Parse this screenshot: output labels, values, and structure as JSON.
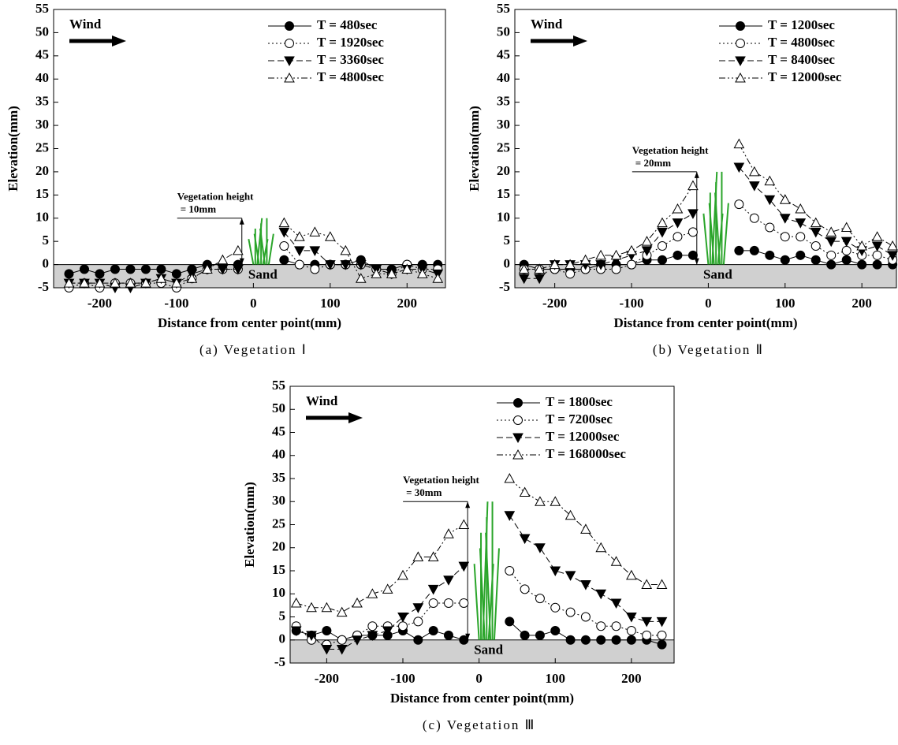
{
  "chart_data": [
    {
      "type": "line",
      "caption": "(a) Vegetation Ⅰ",
      "xlabel": "Distance from center point(mm)",
      "ylabel": "Elevation(mm)",
      "wind_label": "Wind",
      "sand_label": "Sand",
      "vegetation_label": "Vegetation height",
      "vegetation_height": {
        "value": 10,
        "label": "= 10mm"
      },
      "x": [
        -240,
        -220,
        -200,
        -180,
        -160,
        -140,
        -120,
        -100,
        -80,
        -60,
        -40,
        -20,
        0,
        20,
        40,
        60,
        80,
        100,
        120,
        140,
        160,
        180,
        200,
        220,
        240
      ],
      "xlim": [
        -260,
        250
      ],
      "xticks": [
        -200,
        -100,
        0,
        100,
        200
      ],
      "ylim": [
        -5,
        55
      ],
      "yticks": [
        -5,
        0,
        5,
        10,
        15,
        20,
        25,
        30,
        35,
        40,
        45,
        50,
        55
      ],
      "legend": "upper right",
      "series": [
        {
          "name": "T = 480sec",
          "color": "#000",
          "marker": "circle-filled",
          "dash": "solid",
          "values": [
            -2,
            -1,
            -2,
            -1,
            -1,
            -1,
            -1,
            -2,
            -1,
            0,
            0,
            0,
            null,
            null,
            1,
            0,
            0,
            0,
            0,
            1,
            -1,
            -1,
            0,
            0,
            0
          ]
        },
        {
          "name": "T = 1920sec",
          "color": "#000",
          "marker": "circle-open",
          "dash": "dotted",
          "values": [
            -5,
            -4,
            -5,
            -4,
            -4,
            -4,
            -4,
            -5,
            -3,
            -1,
            -1,
            -1,
            null,
            null,
            4,
            0,
            -1,
            0,
            0,
            0,
            -1,
            -2,
            0,
            -1,
            -1
          ]
        },
        {
          "name": "T = 3360sec",
          "color": "#000",
          "marker": "triangle-down-filled",
          "dash": "dashed",
          "values": [
            -4,
            -4,
            -4,
            -5,
            -5,
            -4,
            -3,
            -4,
            -2,
            -1,
            -1,
            -1,
            null,
            null,
            7,
            3,
            3,
            0,
            0,
            0,
            -1,
            -2,
            -1,
            -1,
            -2
          ]
        },
        {
          "name": "T = 4800sec",
          "color": "#000",
          "marker": "triangle-up-open",
          "dash": "dashdot",
          "values": [
            -4,
            -4,
            -4,
            -4,
            -4,
            -4,
            -3,
            -4,
            -3,
            -1,
            1,
            3,
            null,
            null,
            9,
            6,
            7,
            6,
            3,
            -3,
            -2,
            -2,
            -1,
            -2,
            -3
          ]
        }
      ]
    },
    {
      "type": "line",
      "caption": "(b) Vegetation Ⅱ",
      "xlabel": "Distance from center point(mm)",
      "ylabel": "Elevation(mm)",
      "wind_label": "Wind",
      "sand_label": "Sand",
      "vegetation_label": "Vegetation height",
      "vegetation_height": {
        "value": 20,
        "label": "= 20mm"
      },
      "x": [
        -240,
        -220,
        -200,
        -180,
        -160,
        -140,
        -120,
        -100,
        -80,
        -60,
        -40,
        -20,
        0,
        20,
        40,
        60,
        80,
        100,
        120,
        140,
        160,
        180,
        200,
        220,
        240
      ],
      "xlim": [
        -252,
        245
      ],
      "xticks": [
        -200,
        -100,
        0,
        100,
        200
      ],
      "ylim": [
        -5,
        55
      ],
      "yticks": [
        -5,
        0,
        5,
        10,
        15,
        20,
        25,
        30,
        35,
        40,
        45,
        50,
        55
      ],
      "legend": "upper right",
      "series": [
        {
          "name": "T = 1200sec",
          "color": "#000",
          "marker": "circle-filled",
          "dash": "solid",
          "values": [
            0,
            -1,
            -1,
            -1,
            -1,
            0,
            0,
            0,
            1,
            1,
            2,
            2,
            null,
            null,
            3,
            3,
            2,
            1,
            2,
            1,
            0,
            1,
            0,
            0,
            0
          ]
        },
        {
          "name": "T = 4800sec",
          "color": "#000",
          "marker": "circle-open",
          "dash": "dotted",
          "values": [
            -1,
            -1,
            -1,
            -2,
            -1,
            -1,
            -1,
            0,
            2,
            4,
            6,
            7,
            null,
            null,
            13,
            10,
            8,
            6,
            6,
            4,
            2,
            3,
            2,
            2,
            1
          ]
        },
        {
          "name": "T = 8400sec",
          "color": "#000",
          "marker": "triangle-down-filled",
          "dash": "dashed",
          "values": [
            -3,
            -3,
            0,
            0,
            0,
            0,
            1,
            2,
            3,
            7,
            9,
            11,
            null,
            null,
            21,
            17,
            14,
            10,
            9,
            7,
            5,
            5,
            3,
            4,
            2
          ]
        },
        {
          "name": "T = 12000sec",
          "color": "#000",
          "marker": "triangle-up-open",
          "dash": "dashdot",
          "values": [
            -1,
            -1,
            0,
            0,
            1,
            2,
            2,
            3,
            5,
            9,
            12,
            17,
            null,
            null,
            26,
            20,
            18,
            14,
            12,
            9,
            7,
            8,
            4,
            6,
            4
          ]
        }
      ]
    },
    {
      "type": "line",
      "caption": "(c) Vegetation Ⅲ",
      "xlabel": "Distance from center point(mm)",
      "ylabel": "Elevation(mm)",
      "wind_label": "Wind",
      "sand_label": "Sand",
      "vegetation_label": "Vegetation height",
      "vegetation_height": {
        "value": 30,
        "label": "= 30mm"
      },
      "x": [
        -240,
        -220,
        -200,
        -180,
        -160,
        -140,
        -120,
        -100,
        -80,
        -60,
        -40,
        -20,
        0,
        20,
        40,
        60,
        80,
        100,
        120,
        140,
        160,
        180,
        200,
        220,
        240
      ],
      "xlim": [
        -248,
        256
      ],
      "xticks": [
        -200,
        -100,
        0,
        100,
        200
      ],
      "ylim": [
        -5,
        55
      ],
      "yticks": [
        -5,
        0,
        5,
        10,
        15,
        20,
        25,
        30,
        35,
        40,
        45,
        50,
        55
      ],
      "legend": "upper right",
      "series": [
        {
          "name": "T = 1800sec",
          "color": "#000",
          "marker": "circle-filled",
          "dash": "solid",
          "values": [
            2,
            1,
            2,
            0,
            1,
            1,
            1,
            2,
            0,
            2,
            1,
            0,
            null,
            null,
            4,
            1,
            1,
            2,
            0,
            0,
            0,
            0,
            0,
            0,
            -1
          ]
        },
        {
          "name": "T = 7200sec",
          "color": "#000",
          "marker": "circle-open",
          "dash": "dotted",
          "values": [
            3,
            0,
            -1,
            0,
            1,
            3,
            3,
            3,
            4,
            8,
            8,
            8,
            null,
            null,
            15,
            11,
            9,
            7,
            6,
            5,
            3,
            3,
            2,
            1,
            1
          ]
        },
        {
          "name": "T = 12000sec",
          "color": "#000",
          "marker": "triangle-down-filled",
          "dash": "dashed",
          "values": [
            2,
            1,
            -2,
            -2,
            0,
            1,
            2,
            5,
            7,
            11,
            13,
            16,
            null,
            null,
            27,
            22,
            20,
            15,
            14,
            12,
            10,
            8,
            5,
            4,
            4
          ]
        },
        {
          "name": "T = 168000sec",
          "color": "#000",
          "marker": "triangle-up-open",
          "dash": "dashdot",
          "values": [
            8,
            7,
            7,
            6,
            8,
            10,
            11,
            14,
            18,
            18,
            23,
            25,
            null,
            null,
            35,
            32,
            30,
            30,
            27,
            24,
            20,
            17,
            14,
            12,
            12
          ]
        }
      ]
    }
  ]
}
